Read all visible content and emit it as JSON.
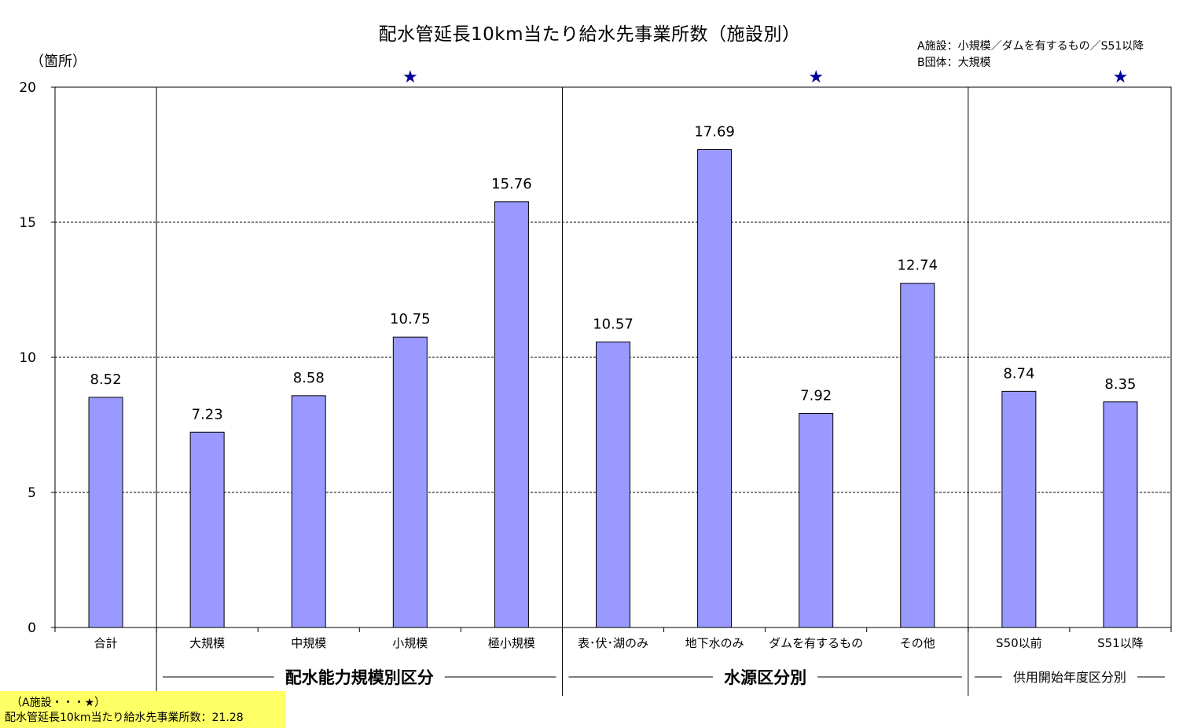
{
  "chart_data": {
    "type": "bar",
    "title": "配水管延長10km当たり給水先事業所数（施設別）",
    "ylabel": "（箇所）",
    "ylim": [
      0,
      20
    ],
    "yticks": [
      0,
      5,
      10,
      15,
      20
    ],
    "grid": true,
    "categories": [
      "合計",
      "大規模",
      "中規模",
      "小規模",
      "極小規模",
      "表･伏･湖のみ",
      "地下水のみ",
      "ダムを有するもの",
      "その他",
      "S50以前",
      "S51以降"
    ],
    "values": [
      8.52,
      7.23,
      8.58,
      10.75,
      15.76,
      10.57,
      17.69,
      7.92,
      12.74,
      8.74,
      8.35
    ],
    "value_labels": [
      "8.52",
      "7.23",
      "8.58",
      "10.75",
      "15.76",
      "10.57",
      "17.69",
      "7.92",
      "12.74",
      "8.74",
      "8.35"
    ],
    "starred": [
      3,
      7,
      10
    ],
    "star_symbol": "★",
    "groups": [
      {
        "label": "配水能力規模別区分",
        "start": 1,
        "end": 4
      },
      {
        "label": "水源区分別",
        "start": 5,
        "end": 8
      },
      {
        "label": "供用開始年度区分別",
        "start": 9,
        "end": 10
      }
    ],
    "bar_color": "#9999ff",
    "star_color": "#000099"
  },
  "legend_note": {
    "line1": "A施設：小規模／ダムを有するもの／S51以降",
    "line2": "B団体：大規模"
  },
  "footnote": {
    "line1": "（A施設・・・★）",
    "line2": "配水管延長10km当たり給水先事業所数：21.28"
  }
}
